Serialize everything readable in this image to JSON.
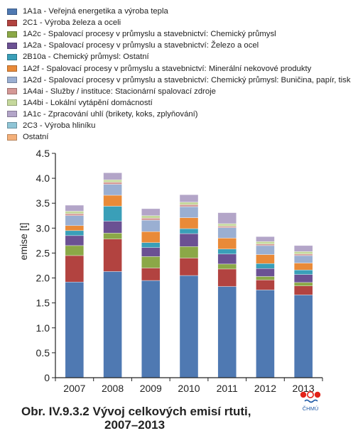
{
  "chart_data": {
    "type": "bar",
    "stacked": true,
    "categories": [
      "2007",
      "2008",
      "2009",
      "2010",
      "2011",
      "2012",
      "2013"
    ],
    "ylabel": "emise [t]",
    "xlabel": "",
    "ylim": [
      0,
      4.5
    ],
    "yticks": [
      "0",
      "0.5",
      "1.0",
      "1.5",
      "2.0",
      "2.5",
      "3.0",
      "3.5",
      "4.0",
      "4.5"
    ],
    "grid": false,
    "legend_position": "top-left",
    "series": [
      {
        "name": "1A1a - Veřejná energetika a výroba tepla",
        "color": "#4f79b2",
        "values": [
          1.92,
          2.13,
          1.95,
          2.05,
          1.83,
          1.76,
          1.66
        ]
      },
      {
        "name": "2C1 - Výroba železa a oceli",
        "color": "#b24340",
        "values": [
          0.53,
          0.65,
          0.25,
          0.35,
          0.35,
          0.2,
          0.18
        ]
      },
      {
        "name": "1A2c - Spalovací procesy v průmyslu a stavebnictví: Chemický průmysl",
        "color": "#8ba847",
        "values": [
          0.2,
          0.12,
          0.23,
          0.23,
          0.1,
          0.07,
          0.07
        ]
      },
      {
        "name": "1A2a - Spalovací procesy v průmyslu a stavebnictví: Železo a ocel",
        "color": "#6b5193",
        "values": [
          0.2,
          0.24,
          0.18,
          0.26,
          0.2,
          0.16,
          0.16
        ]
      },
      {
        "name": "2B10a - Chemický průmysl: Ostatní",
        "color": "#3a9fb8",
        "values": [
          0.1,
          0.3,
          0.1,
          0.1,
          0.1,
          0.1,
          0.09
        ]
      },
      {
        "name": "1A2f - Spalovací procesy v průmyslu a stavebnictví: Minerální nekovové produkty",
        "color": "#e98a38",
        "values": [
          0.1,
          0.22,
          0.22,
          0.22,
          0.22,
          0.18,
          0.14
        ]
      },
      {
        "name": "1A2d - Spalovací procesy v průmyslu a stavebnictví: Chemický průmysl: Buničina, papír, tisk",
        "color": "#9aafd2",
        "values": [
          0.2,
          0.22,
          0.23,
          0.22,
          0.21,
          0.18,
          0.15
        ]
      },
      {
        "name": "1A4ai - Služby / instituce: Stacionární spalovací zdroje",
        "color": "#d49896",
        "values": [
          0.04,
          0.04,
          0.04,
          0.04,
          0.03,
          0.03,
          0.03
        ]
      },
      {
        "name": "1A4bi - Lokální vytápění domácností",
        "color": "#c5d89c",
        "values": [
          0.05,
          0.05,
          0.05,
          0.05,
          0.05,
          0.05,
          0.05
        ]
      },
      {
        "name": "1A1c - Zpracování uhlí (brikety, koks, zplyňování)",
        "color": "#b3a5c8",
        "values": [
          0.12,
          0.14,
          0.14,
          0.15,
          0.22,
          0.1,
          0.12
        ]
      },
      {
        "name": "2C3 - Výroba hliníku",
        "color": "#8fc5d6",
        "values": [
          0.0,
          0.0,
          0.0,
          0.0,
          0.0,
          0.0,
          0.0
        ]
      },
      {
        "name": "Ostatní",
        "color": "#f4b07a",
        "values": [
          0.0,
          0.0,
          0.0,
          0.0,
          0.0,
          0.0,
          0.0
        ]
      }
    ]
  },
  "caption": {
    "number": "Obr. IV.9.3.2",
    "title_line1": "Vývoj celkových emisí rtuti,",
    "title_line2": "2007–2013"
  },
  "logo": {
    "text": "ČHMÚ",
    "colors": {
      "dots": "#e2231a",
      "waves": "#1f5aa6"
    }
  }
}
